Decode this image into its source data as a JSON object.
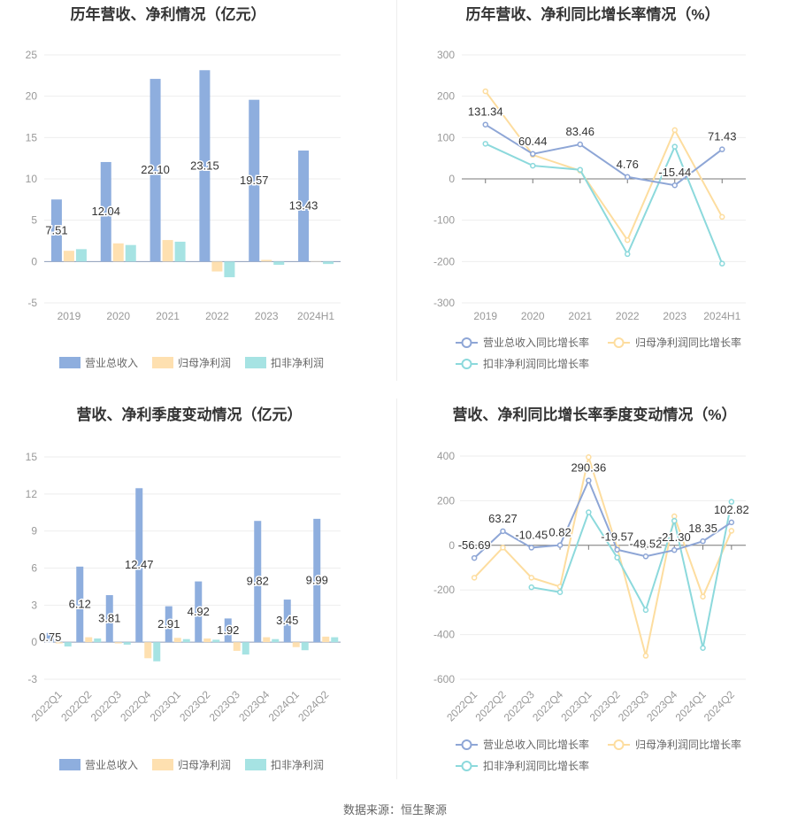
{
  "colors": {
    "revenue": "#8eaede",
    "net_profit": "#fee0b0",
    "deducted_profit": "#a6e3e3",
    "revenue_line": "#8ea6d6",
    "net_line": "#fddd9f",
    "deducted_line": "#8cd9dc",
    "axis_text": "#999999",
    "grid": "#eeeeee",
    "title": "#333333"
  },
  "source": "数据来源：恒生聚源",
  "chart_data": [
    {
      "type": "bar",
      "title": "历年营收、净利情况（亿元）",
      "categories": [
        "2019",
        "2020",
        "2021",
        "2022",
        "2023",
        "2024H1"
      ],
      "ylim": [
        -5,
        25
      ],
      "yticks": [
        "25",
        "20",
        "15",
        "10",
        "5",
        "0",
        "-5"
      ],
      "ytick_values": [
        25,
        20,
        15,
        10,
        5,
        0,
        -5
      ],
      "series": [
        {
          "name": "营业总收入",
          "values": [
            7.51,
            12.04,
            22.1,
            23.15,
            19.57,
            13.43
          ],
          "labels": [
            "7.51",
            "12.04",
            "22.10",
            "23.15",
            "19.57",
            "13.43"
          ]
        },
        {
          "name": "归母净利润",
          "values": [
            1.3,
            2.2,
            2.6,
            -1.2,
            0.2,
            0.05
          ]
        },
        {
          "name": "扣非净利润",
          "values": [
            1.5,
            2.0,
            2.4,
            -1.9,
            -0.4,
            -0.3
          ]
        }
      ],
      "legend_position": "bottom"
    },
    {
      "type": "line",
      "title": "历年营收、净利同比增长率情况（%）",
      "categories": [
        "2019",
        "2020",
        "2021",
        "2022",
        "2023",
        "2024H1"
      ],
      "ylim": [
        -300,
        300
      ],
      "yticks": [
        "300",
        "200",
        "100",
        "0",
        "-100",
        "-200",
        "-300"
      ],
      "ytick_values": [
        300,
        200,
        100,
        0,
        -100,
        -200,
        -300
      ],
      "series": [
        {
          "name": "营业总收入同比增长率",
          "values": [
            131.34,
            60.44,
            83.46,
            4.76,
            -15.44,
            71.43
          ],
          "labels": [
            "131.34",
            "60.44",
            "83.46",
            "4.76",
            "-15.44",
            "71.43"
          ]
        },
        {
          "name": "归母净利润同比增长率",
          "values": [
            212,
            58,
            20,
            -148,
            118,
            -92
          ]
        },
        {
          "name": "扣非净利润同比增长率",
          "values": [
            85,
            32,
            22,
            -182,
            78,
            -205
          ]
        }
      ],
      "legend_position": "bottom"
    },
    {
      "type": "bar",
      "title": "营收、净利季度变动情况（亿元）",
      "categories": [
        "2022Q1",
        "2022Q2",
        "2022Q3",
        "2022Q4",
        "2023Q1",
        "2023Q2",
        "2023Q3",
        "2023Q4",
        "2024Q1",
        "2024Q2"
      ],
      "ylim": [
        -3,
        15
      ],
      "yticks": [
        "15",
        "12",
        "9",
        "6",
        "3",
        "0",
        "-3"
      ],
      "ytick_values": [
        15,
        12,
        9,
        6,
        3,
        0,
        -3
      ],
      "series": [
        {
          "name": "营业总收入",
          "values": [
            0.75,
            6.12,
            3.81,
            12.47,
            2.91,
            4.92,
            1.92,
            9.82,
            3.45,
            9.99
          ],
          "labels": [
            "0.75",
            "6.12",
            "3.81",
            "12.47",
            "2.91",
            "4.92",
            "1.92",
            "9.82",
            "3.45",
            "9.99"
          ]
        },
        {
          "name": "归母净利润",
          "values": [
            -0.1,
            0.4,
            -0.1,
            -1.3,
            0.35,
            0.3,
            -0.7,
            0.4,
            -0.4,
            0.45
          ]
        },
        {
          "name": "扣非净利润",
          "values": [
            -0.35,
            0.3,
            -0.2,
            -1.55,
            0.25,
            0.2,
            -1.0,
            0.25,
            -0.65,
            0.4
          ]
        }
      ],
      "legend_position": "bottom"
    },
    {
      "type": "line",
      "title": "营收、净利同比增长率季度变动情况（%）",
      "categories": [
        "2022Q1",
        "2022Q2",
        "2022Q3",
        "2022Q4",
        "2023Q1",
        "2023Q2",
        "2023Q3",
        "2023Q4",
        "2024Q1",
        "2024Q2"
      ],
      "ylim": [
        -600,
        400
      ],
      "yticks": [
        "400",
        "200",
        "0",
        "-200",
        "-400",
        "-600"
      ],
      "ytick_values": [
        400,
        200,
        0,
        -200,
        -400,
        -600
      ],
      "series": [
        {
          "name": "营业总收入同比增长率",
          "values": [
            -56.69,
            63.27,
            -10.45,
            0.82,
            290.36,
            -19.57,
            -49.52,
            -21.3,
            18.35,
            102.82
          ],
          "labels": [
            "-56.69",
            "63.27",
            "-10.45",
            "0.82",
            "290.36",
            "-19.57",
            "-49.52",
            "-21.30",
            "18.35",
            "102.82"
          ]
        },
        {
          "name": "归母净利润同比增长率",
          "values": [
            -145,
            -10,
            -145,
            -185,
            395,
            -10,
            -495,
            130,
            -230,
            65
          ]
        },
        {
          "name": "扣非净利润同比增长率",
          "values": [
            null,
            null,
            -188,
            -210,
            148,
            -55,
            -290,
            110,
            -460,
            195
          ]
        }
      ],
      "legend_position": "bottom"
    }
  ]
}
